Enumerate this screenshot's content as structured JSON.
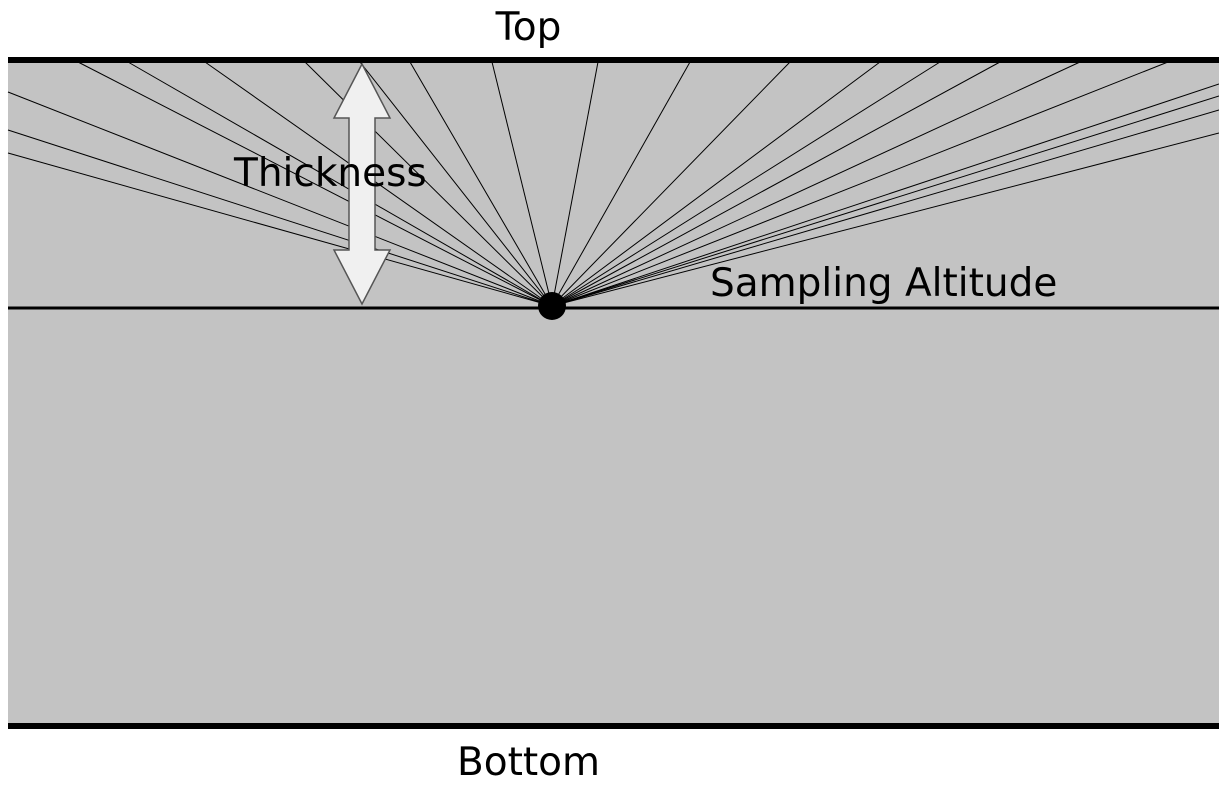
{
  "labels": {
    "top": "Top",
    "bottom": "Bottom",
    "thickness": "Thickness",
    "sampling_altitude": "Sampling Altitude"
  },
  "colors": {
    "layer_fill": "#c3c3c3",
    "boundary": "#000000",
    "ray": "#000000",
    "arrow_fill": "#f0f0f0",
    "arrow_stroke": "#555555",
    "point": "#000000"
  },
  "rays": {
    "count": 22
  }
}
